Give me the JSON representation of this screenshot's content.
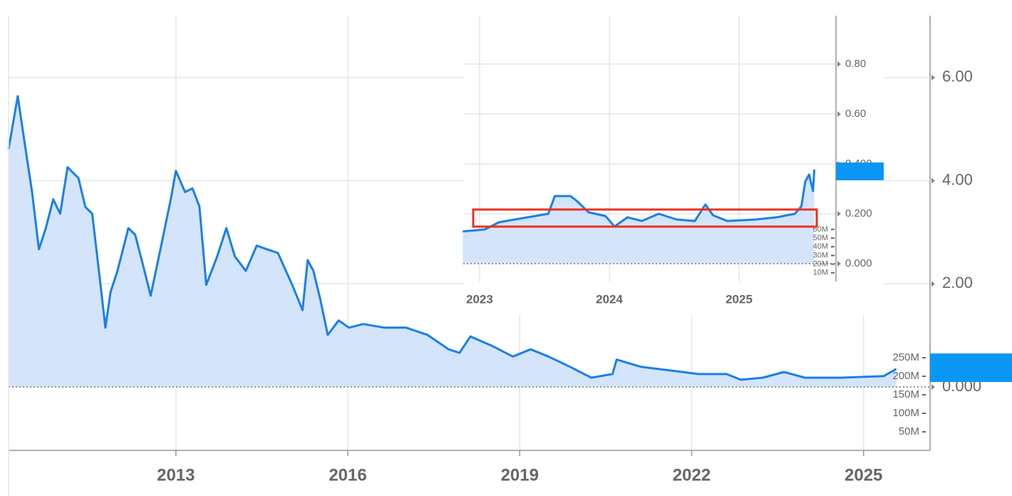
{
  "chart_data": [
    {
      "type": "area",
      "x": [
        2010.08,
        2010.24,
        2010.36,
        2010.49,
        2010.61,
        2010.73,
        2010.86,
        2010.98,
        2011.11,
        2011.3,
        2011.42,
        2011.54,
        2011.67,
        2011.77,
        2011.86,
        2011.98,
        2012.17,
        2012.29,
        2012.42,
        2012.56,
        2012.73,
        2012.91,
        2013.0,
        2013.16,
        2013.29,
        2013.41,
        2013.53,
        2013.72,
        2013.88,
        2014.03,
        2014.22,
        2014.41,
        2014.59,
        2014.78,
        2015.03,
        2015.21,
        2015.3,
        2015.4,
        2015.52,
        2015.65,
        2015.84,
        2016.02,
        2016.27,
        2016.64,
        2017.02,
        2017.39,
        2017.76,
        2017.95,
        2018.14,
        2018.51,
        2018.88,
        2019.19,
        2019.5,
        2019.88,
        2020.25,
        2020.62,
        2020.69,
        2021.12,
        2021.62,
        2022.12,
        2022.61,
        2022.86,
        2023.24,
        2023.61,
        2023.98,
        2024.6,
        2025.35,
        2025.57
      ],
      "values": [
        4.61,
        5.64,
        4.74,
        3.78,
        2.67,
        3.08,
        3.64,
        3.36,
        4.26,
        4.05,
        3.49,
        3.36,
        2.12,
        1.15,
        1.84,
        2.25,
        3.08,
        2.95,
        2.39,
        1.77,
        2.67,
        3.64,
        4.19,
        3.78,
        3.85,
        3.5,
        1.98,
        2.53,
        3.08,
        2.53,
        2.25,
        2.74,
        2.67,
        2.6,
        1.98,
        1.49,
        2.46,
        2.25,
        1.7,
        1.01,
        1.29,
        1.15,
        1.22,
        1.15,
        1.15,
        1.01,
        0.73,
        0.66,
        0.98,
        0.8,
        0.59,
        0.73,
        0.59,
        0.39,
        0.18,
        0.25,
        0.53,
        0.39,
        0.32,
        0.25,
        0.25,
        0.14,
        0.18,
        0.29,
        0.18,
        0.18,
        0.21,
        0.35
      ],
      "color": "#1a7fe8",
      "fill": "#d4e5fb",
      "xlim": [
        2010.08,
        2026.16
      ],
      "xticks": [
        2013,
        2016,
        2019,
        2022,
        2025
      ],
      "ylim": [
        -1.23,
        7.2
      ],
      "yticks": [
        {
          "value": 0,
          "label": "0.000"
        },
        {
          "value": 2,
          "label": "2.00"
        },
        {
          "value": 4,
          "label": "4.00"
        },
        {
          "value": 6,
          "label": "6.00"
        }
      ],
      "y2lim": [
        0,
        1173000000
      ],
      "y2ticks": [
        {
          "value": 50000000,
          "label": "50M"
        },
        {
          "value": 100000000,
          "label": "100M"
        },
        {
          "value": 150000000,
          "label": "150M"
        },
        {
          "value": 200000000,
          "label": "200M"
        },
        {
          "value": 250000000,
          "label": "250M"
        }
      ],
      "grid": true
    },
    {
      "type": "area",
      "x": [
        2022.87,
        2023.04,
        2023.15,
        2023.37,
        2023.53,
        2023.58,
        2023.7,
        2023.75,
        2023.84,
        2023.97,
        2024.04,
        2024.14,
        2024.25,
        2024.38,
        2024.52,
        2024.66,
        2024.74,
        2024.8,
        2024.91,
        2025.13,
        2025.29,
        2025.43,
        2025.48,
        2025.51,
        2025.54,
        2025.57,
        2025.58
      ],
      "values": [
        0.129,
        0.137,
        0.166,
        0.186,
        0.2,
        0.271,
        0.271,
        0.251,
        0.206,
        0.191,
        0.149,
        0.186,
        0.171,
        0.2,
        0.177,
        0.171,
        0.237,
        0.194,
        0.171,
        0.177,
        0.186,
        0.2,
        0.229,
        0.329,
        0.357,
        0.291,
        0.377
      ],
      "color": "#1a7fe8",
      "fill": "#d4e5fb",
      "xlim": [
        2022.874,
        2025.747
      ],
      "xticks": [
        2023,
        2024,
        2025
      ],
      "ylim": [
        -0.0714,
        0.994
      ],
      "yticks": [
        {
          "value": 0,
          "label": "0.000"
        },
        {
          "value": 0.2,
          "label": "0.200"
        },
        {
          "value": 0.4,
          "label": "0.400"
        },
        {
          "value": 0.6,
          "label": "0.60"
        },
        {
          "value": 0.8,
          "label": "0.80"
        }
      ],
      "y2lim": [
        0,
        306000000
      ],
      "y2ticks": [
        {
          "value": 10000000,
          "label": "10M"
        },
        {
          "value": 20000000,
          "label": "20M"
        },
        {
          "value": 30000000,
          "label": "30M"
        },
        {
          "value": 40000000,
          "label": "40M"
        },
        {
          "value": 50000000,
          "label": "50M"
        },
        {
          "value": 60000000,
          "label": "60M"
        }
      ],
      "grid": true
    }
  ]
}
